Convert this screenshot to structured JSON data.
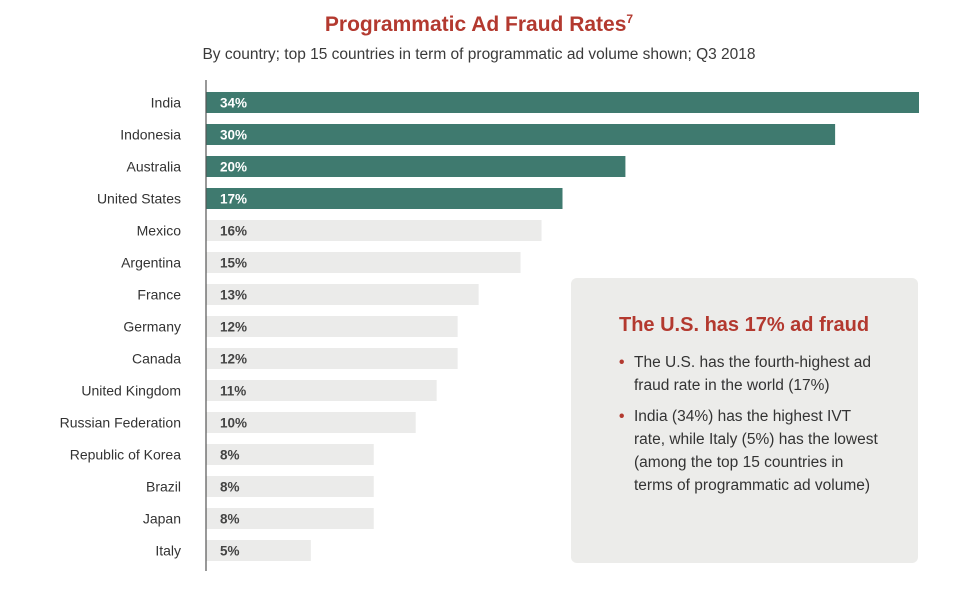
{
  "title": "Programmatic Ad Fraud Rates",
  "title_footnote": "7",
  "subtitle": "By country; top 15 countries in term of programmatic ad volume shown; Q3 2018",
  "colors": {
    "highlight_bar": "#3f7a6f",
    "normal_bar": "#ebebea",
    "highlight_text": "#ffffff",
    "normal_text": "#444444",
    "accent": "#b3392f",
    "axis": "#555555"
  },
  "chart_data": {
    "type": "bar",
    "orientation": "horizontal",
    "title": "Programmatic Ad Fraud Rates",
    "subtitle": "By country; top 15 countries in term of programmatic ad volume shown; Q3 2018",
    "xlabel": "",
    "ylabel": "",
    "xlim": [
      0,
      34
    ],
    "unit": "%",
    "grid": false,
    "categories": [
      "India",
      "Indonesia",
      "Australia",
      "United States",
      "Mexico",
      "Argentina",
      "France",
      "Germany",
      "Canada",
      "United Kingdom",
      "Russian Federation",
      "Republic of Korea",
      "Brazil",
      "Japan",
      "Italy"
    ],
    "values": [
      34,
      30,
      20,
      17,
      16,
      15,
      13,
      12,
      12,
      11,
      10,
      8,
      8,
      8,
      5
    ],
    "labels": [
      "34%",
      "30%",
      "20%",
      "17%",
      "16%",
      "15%",
      "13%",
      "12%",
      "12%",
      "11%",
      "10%",
      "8%",
      "8%",
      "8%",
      "5%"
    ],
    "highlighted": [
      true,
      true,
      true,
      true,
      false,
      false,
      false,
      false,
      false,
      false,
      false,
      false,
      false,
      false,
      false
    ]
  },
  "callout": {
    "title": "The U.S. has 17% ad fraud",
    "bullet_symbol": "•",
    "bullets": [
      "The U.S. has the fourth-highest ad fraud rate in the world (17%)",
      "India (34%) has the highest IVT rate, while Italy (5%) has the lowest (among the top 15 countries in terms of programmatic ad volume)"
    ]
  }
}
